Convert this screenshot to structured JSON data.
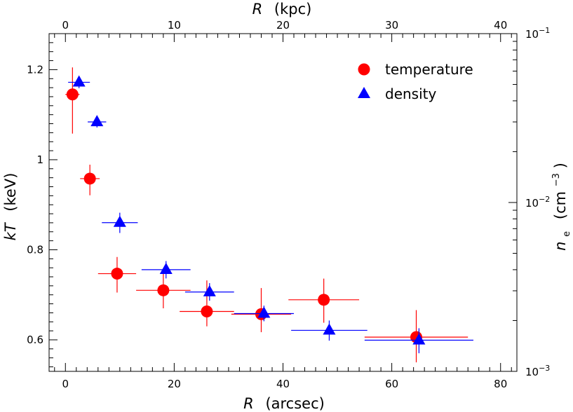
{
  "chart_data": {
    "type": "scatter",
    "x_bottom_axis": {
      "variable": "R",
      "unit": "(arcsec)",
      "range": [
        -3,
        83
      ],
      "ticks": [
        0,
        20,
        40,
        60,
        80
      ],
      "tick_labels": [
        "0",
        "20",
        "40",
        "60",
        "80"
      ]
    },
    "x_top_axis": {
      "variable": "R",
      "unit": "(kpc)",
      "range": [
        -1.5,
        41.5
      ],
      "ticks": [
        0,
        10,
        20,
        30,
        40
      ],
      "tick_labels": [
        "0",
        "10",
        "20",
        "30",
        "40"
      ]
    },
    "y_left_axis": {
      "variable": "kT",
      "unit": "(keV)",
      "range": [
        0.53,
        1.28
      ],
      "ticks": [
        0.6,
        0.8,
        1,
        1.2
      ],
      "tick_labels": [
        "0.6",
        "0.8",
        "1",
        "1.2"
      ]
    },
    "y_right_axis": {
      "variable": "n",
      "subscript": "e",
      "unit_text": "(cm",
      "unit_exponent": "−3",
      "unit_close": ")",
      "scale": "log",
      "range": [
        0.001,
        0.1
      ],
      "tick_labels": [
        {
          "value": 0.001,
          "base": "10",
          "exp": "−3"
        },
        {
          "value": 0.01,
          "base": "10",
          "exp": "−2"
        },
        {
          "value": 0.1,
          "base": "10",
          "exp": "−1"
        }
      ]
    },
    "legend_position": "top-right",
    "series": [
      {
        "name": "temperature",
        "axis": "left",
        "marker": "circle",
        "color": "#ff0000",
        "points": [
          {
            "x": 1.3,
            "xerr": 1.3,
            "y": 1.145,
            "ylo": 1.058,
            "yhi": 1.205
          },
          {
            "x": 4.5,
            "xerr": 1.8,
            "y": 0.958,
            "ylo": 0.921,
            "yhi": 0.989
          },
          {
            "x": 9.5,
            "xerr": 3.5,
            "y": 0.747,
            "ylo": 0.705,
            "yhi": 0.784
          },
          {
            "x": 18.0,
            "xerr": 5.0,
            "y": 0.71,
            "ylo": 0.67,
            "yhi": 0.747
          },
          {
            "x": 26.0,
            "xerr": 5.0,
            "y": 0.663,
            "ylo": 0.63,
            "yhi": 0.732
          },
          {
            "x": 36.0,
            "xerr": 5.5,
            "y": 0.657,
            "ylo": 0.617,
            "yhi": 0.715
          },
          {
            "x": 47.5,
            "xerr": 6.5,
            "y": 0.689,
            "ylo": 0.638,
            "yhi": 0.736
          },
          {
            "x": 64.5,
            "xerr": 9.5,
            "y": 0.606,
            "ylo": 0.55,
            "yhi": 0.666
          }
        ]
      },
      {
        "name": "density",
        "axis": "right",
        "marker": "triangle",
        "color": "#0000ff",
        "points": [
          {
            "x": 2.5,
            "xerr": 2.0,
            "y": 0.0515,
            "ylo": 0.0475,
            "yhi": 0.0555
          },
          {
            "x": 5.8,
            "xerr": 1.7,
            "y": 0.03,
            "ylo": 0.0278,
            "yhi": 0.0325
          },
          {
            "x": 10.0,
            "xerr": 3.3,
            "y": 0.0076,
            "ylo": 0.0066,
            "yhi": 0.0087
          },
          {
            "x": 18.5,
            "xerr": 4.5,
            "y": 0.004,
            "ylo": 0.00355,
            "yhi": 0.0045
          },
          {
            "x": 26.5,
            "xerr": 4.5,
            "y": 0.00295,
            "ylo": 0.00262,
            "yhi": 0.00333
          },
          {
            "x": 36.5,
            "xerr": 5.5,
            "y": 0.0022,
            "ylo": 0.00198,
            "yhi": 0.00245
          },
          {
            "x": 48.5,
            "xerr": 7.0,
            "y": 0.00175,
            "ylo": 0.00152,
            "yhi": 0.002
          },
          {
            "x": 65.0,
            "xerr": 10.0,
            "y": 0.00153,
            "ylo": 0.00128,
            "yhi": 0.0018
          }
        ]
      }
    ]
  }
}
